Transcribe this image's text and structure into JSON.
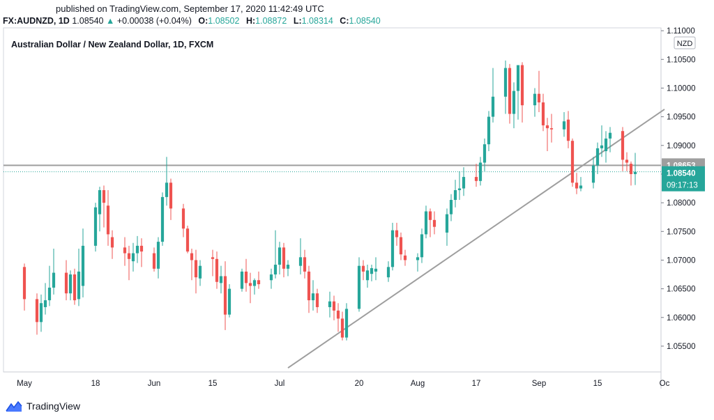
{
  "header": {
    "published": "published on TradingView.com, September 17, 2020 11:42:49 UTC",
    "symbol": "FX:AUDNZD, 1D",
    "last": "1.08540",
    "change": "+0.00038 (+0.04%)",
    "o_label": "O:",
    "o_value": "1.08502",
    "h_label": "H:",
    "h_value": "1.08872",
    "l_label": "L:",
    "l_value": "1.08314",
    "c_label": "C:",
    "c_value": "1.08540"
  },
  "footer": {
    "brand": "TradingView"
  },
  "colors": {
    "up": "#26a69a",
    "down": "#ef5350",
    "trendline": "#9e9e9e",
    "hline": "#9e9e9e",
    "text": "#131722"
  },
  "chart_data": {
    "type": "candlestick",
    "title": "Australian Dollar / New Zealand Dollar, 1D, FXCM",
    "currency": "NZD",
    "ylim": [
      1.0505,
      1.1105
    ],
    "yticks": [
      "1.05500",
      "1.06000",
      "1.06500",
      "1.07000",
      "1.07500",
      "1.08000",
      "1.08500",
      "1.09000",
      "1.09500",
      "1.10000",
      "1.10500",
      "1.11000"
    ],
    "xticks": [
      "May",
      "18",
      "Jun",
      "15",
      "Jul",
      "20",
      "Aug",
      "17",
      "Sep",
      "15",
      "Oc"
    ],
    "horizontal_line": {
      "value": 1.08653,
      "label": "1.08653"
    },
    "last_price": {
      "value": 1.0854,
      "label": "1.08540",
      "countdown": "09:17:13"
    },
    "trendline": {
      "from": [
        "2020-07-03",
        1.0512
      ],
      "to": [
        "2020-10-01",
        1.0963
      ]
    },
    "candles": [
      [
        "2020-05-01",
        1.0688,
        1.0694,
        1.0612,
        1.0632
      ],
      [
        "2020-05-04",
        1.0632,
        1.0642,
        1.057,
        1.0592
      ],
      [
        "2020-05-05",
        1.0592,
        1.064,
        1.0575,
        1.0625
      ],
      [
        "2020-05-06",
        1.0618,
        1.066,
        1.0605,
        1.063
      ],
      [
        "2020-05-07",
        1.063,
        1.069,
        1.062,
        1.0652
      ],
      [
        "2020-05-08",
        1.0652,
        1.072,
        1.064,
        1.0678
      ],
      [
        "2020-05-11",
        1.0678,
        1.07,
        1.063,
        1.0642
      ],
      [
        "2020-05-12",
        1.0642,
        1.0682,
        1.063,
        1.0675
      ],
      [
        "2020-05-13",
        1.0675,
        1.0685,
        1.0622,
        1.063
      ],
      [
        "2020-05-14",
        1.0632,
        1.072,
        1.062,
        1.068
      ],
      [
        "2020-05-15",
        1.0655,
        1.0755,
        1.0635,
        1.0725
      ],
      [
        "2020-05-18",
        1.0725,
        1.08,
        1.0715,
        1.0792
      ],
      [
        "2020-05-19",
        1.078,
        1.0828,
        1.075,
        1.0822
      ],
      [
        "2020-05-20",
        1.0822,
        1.083,
        1.0757,
        1.08
      ],
      [
        "2020-05-21",
        1.0795,
        1.0822,
        1.0725,
        1.0745
      ],
      [
        "2020-05-22",
        1.074,
        1.0752,
        1.0702,
        1.0722
      ],
      [
        "2020-05-25",
        1.0722,
        1.074,
        1.069,
        1.0712
      ],
      [
        "2020-05-26",
        1.0712,
        1.0725,
        1.0665,
        1.0702
      ],
      [
        "2020-05-27",
        1.0698,
        1.073,
        1.068,
        1.0712
      ],
      [
        "2020-05-28",
        1.0712,
        1.0742,
        1.0695,
        1.0725
      ],
      [
        "2020-05-29",
        1.0725,
        1.0738,
        1.0688,
        1.0715
      ],
      [
        "2020-06-01",
        1.0712,
        1.0722,
        1.068,
        1.0685
      ],
      [
        "2020-06-02",
        1.0685,
        1.074,
        1.0668,
        1.0732
      ],
      [
        "2020-06-03",
        1.0732,
        1.0818,
        1.0725,
        1.081
      ],
      [
        "2020-06-04",
        1.081,
        1.088,
        1.0795,
        1.0835
      ],
      [
        "2020-06-05",
        1.0835,
        1.0842,
        1.077,
        1.079
      ],
      [
        "2020-06-08",
        1.079,
        1.0798,
        1.074,
        1.0755
      ],
      [
        "2020-06-09",
        1.0755,
        1.076,
        1.0712,
        1.0715
      ],
      [
        "2020-06-10",
        1.0712,
        1.072,
        1.0665,
        1.07
      ],
      [
        "2020-06-11",
        1.07,
        1.0718,
        1.0642,
        1.067
      ],
      [
        "2020-06-12",
        1.0668,
        1.07,
        1.0655,
        1.069
      ],
      [
        "2020-06-15",
        1.0705,
        1.0718,
        1.0672,
        1.0702
      ],
      [
        "2020-06-16",
        1.0702,
        1.0715,
        1.065,
        1.0662
      ],
      [
        "2020-06-17",
        1.066,
        1.069,
        1.0642,
        1.0672
      ],
      [
        "2020-06-18",
        1.0672,
        1.0698,
        1.0578,
        1.0605
      ],
      [
        "2020-06-19",
        1.0605,
        1.0658,
        1.06,
        1.065
      ],
      [
        "2020-06-22",
        1.065,
        1.0685,
        1.0645,
        1.068
      ],
      [
        "2020-06-23",
        1.068,
        1.0702,
        1.0645,
        1.066
      ],
      [
        "2020-06-24",
        1.066,
        1.0678,
        1.0625,
        1.0655
      ],
      [
        "2020-06-25",
        1.0655,
        1.0668,
        1.064,
        1.0665
      ],
      [
        "2020-06-26",
        1.0665,
        1.068,
        1.065,
        1.0658
      ],
      [
        "2020-06-29",
        1.0665,
        1.0685,
        1.065,
        1.0675
      ],
      [
        "2020-06-30",
        1.0675,
        1.0752,
        1.0668,
        1.0692
      ],
      [
        "2020-07-01",
        1.0692,
        1.0732,
        1.0675,
        1.0722
      ],
      [
        "2020-07-02",
        1.0722,
        1.073,
        1.067,
        1.0685
      ],
      [
        "2020-07-03",
        1.0685,
        1.07,
        1.0672,
        1.0692
      ],
      [
        "2020-07-06",
        1.069,
        1.0738,
        1.0675,
        1.0705
      ],
      [
        "2020-07-07",
        1.0705,
        1.0718,
        1.0668,
        1.068
      ],
      [
        "2020-07-08",
        1.068,
        1.069,
        1.0608,
        1.063
      ],
      [
        "2020-07-09",
        1.063,
        1.0665,
        1.0612,
        1.0642
      ],
      [
        "2020-07-10",
        1.0642,
        1.065,
        1.0608,
        1.0618
      ],
      [
        "2020-07-13",
        1.0618,
        1.0645,
        1.06,
        1.0628
      ],
      [
        "2020-07-14",
        1.0628,
        1.0638,
        1.0595,
        1.0612
      ],
      [
        "2020-07-15",
        1.0612,
        1.0625,
        1.0575,
        1.0598
      ],
      [
        "2020-07-16",
        1.0598,
        1.061,
        1.056,
        1.0565
      ],
      [
        "2020-07-17",
        1.0565,
        1.0625,
        1.056,
        1.0615
      ],
      [
        "2020-07-20",
        1.0615,
        1.0705,
        1.061,
        1.069
      ],
      [
        "2020-07-21",
        1.069,
        1.07,
        1.0665,
        1.068
      ],
      [
        "2020-07-22",
        1.0665,
        1.0692,
        1.0652,
        1.0682
      ],
      [
        "2020-07-23",
        1.0676,
        1.0692,
        1.0663,
        1.0686
      ],
      [
        "2020-07-24",
        1.068,
        1.0705,
        1.0665,
        1.0685
      ],
      [
        "2020-07-27",
        1.067,
        1.0698,
        1.0662,
        1.0688
      ],
      [
        "2020-07-28",
        1.0688,
        1.0765,
        1.0682,
        1.0752
      ],
      [
        "2020-07-29",
        1.0752,
        1.0765,
        1.0725,
        1.074
      ],
      [
        "2020-07-30",
        1.074,
        1.0748,
        1.07,
        1.071
      ],
      [
        "2020-07-31",
        1.0708,
        1.0718,
        1.069,
        1.07
      ],
      [
        "2020-08-03",
        1.07,
        1.0712,
        1.068,
        1.0705
      ],
      [
        "2020-08-04",
        1.0705,
        1.0755,
        1.0695,
        1.0745
      ],
      [
        "2020-08-05",
        1.0745,
        1.0795,
        1.0738,
        1.0785
      ],
      [
        "2020-08-06",
        1.0785,
        1.079,
        1.074,
        1.077
      ],
      [
        "2020-08-07",
        1.077,
        1.0785,
        1.0745,
        1.0758
      ],
      [
        "2020-08-10",
        1.0748,
        1.079,
        1.0725,
        1.078
      ],
      [
        "2020-08-11",
        1.078,
        1.0815,
        1.0768,
        1.0805
      ],
      [
        "2020-08-12",
        1.0805,
        1.084,
        1.0792,
        1.0822
      ],
      [
        "2020-08-13",
        1.0822,
        1.0855,
        1.0805,
        1.0825
      ],
      [
        "2020-08-14",
        1.0825,
        1.0862,
        1.0812,
        1.0845
      ],
      [
        "2020-08-17",
        1.0845,
        1.0868,
        1.0828,
        1.0838
      ],
      [
        "2020-08-18",
        1.0838,
        1.088,
        1.083,
        1.087
      ],
      [
        "2020-08-19",
        1.087,
        1.0912,
        1.0855,
        1.0902
      ],
      [
        "2020-08-20",
        1.0902,
        1.096,
        1.089,
        1.095
      ],
      [
        "2020-08-21",
        1.095,
        1.1035,
        1.094,
        1.0985
      ],
      [
        "2020-08-24",
        1.0985,
        1.1048,
        1.0955,
        1.1035
      ],
      [
        "2020-08-25",
        1.1035,
        1.1042,
        1.0938,
        1.0955
      ],
      [
        "2020-08-26",
        1.0955,
        1.101,
        1.093,
        1.0995
      ],
      [
        "2020-08-27",
        1.0995,
        1.1035,
        1.0945,
        1.104
      ],
      [
        "2020-08-28",
        1.104,
        1.1045,
        1.094,
        1.097
      ],
      [
        "2020-08-31",
        1.097,
        1.1,
        1.095,
        1.099
      ],
      [
        "2020-09-01",
        1.099,
        1.103,
        1.0958,
        1.0975
      ],
      [
        "2020-09-02",
        1.0975,
        1.099,
        1.0925,
        1.0935
      ],
      [
        "2020-09-03",
        1.0935,
        1.0948,
        1.089,
        1.093
      ],
      [
        "2020-09-04",
        1.093,
        1.0955,
        1.0905,
        1.0928
      ],
      [
        "2020-09-07",
        1.0928,
        1.0958,
        1.0915,
        1.0942
      ],
      [
        "2020-09-08",
        1.0945,
        1.096,
        1.0895,
        1.0908
      ],
      [
        "2020-09-09",
        1.0908,
        1.0912,
        1.0828,
        1.0835
      ],
      [
        "2020-09-10",
        1.0835,
        1.0852,
        1.0815,
        1.0825
      ],
      [
        "2020-09-11",
        1.0825,
        1.0845,
        1.082,
        1.083
      ],
      [
        "2020-09-14",
        1.0835,
        1.088,
        1.0825,
        1.0865
      ],
      [
        "2020-09-15",
        1.0865,
        1.0905,
        1.085,
        1.0895
      ],
      [
        "2020-09-16",
        1.0895,
        1.0935,
        1.088,
        1.09
      ],
      [
        "2020-09-17",
        1.089,
        1.0925,
        1.087,
        1.0912
      ],
      [
        "2020-09-18",
        1.0912,
        1.0932,
        1.0888,
        1.0922
      ],
      [
        "2020-09-21",
        1.0925,
        1.0932,
        1.0855,
        1.0875
      ],
      [
        "2020-09-22",
        1.0875,
        1.0888,
        1.0855,
        1.087
      ],
      [
        "2020-09-23",
        1.0868,
        1.0872,
        1.083,
        1.085
      ],
      [
        "2020-09-24",
        1.085,
        1.0887,
        1.0831,
        1.0854
      ]
    ]
  }
}
